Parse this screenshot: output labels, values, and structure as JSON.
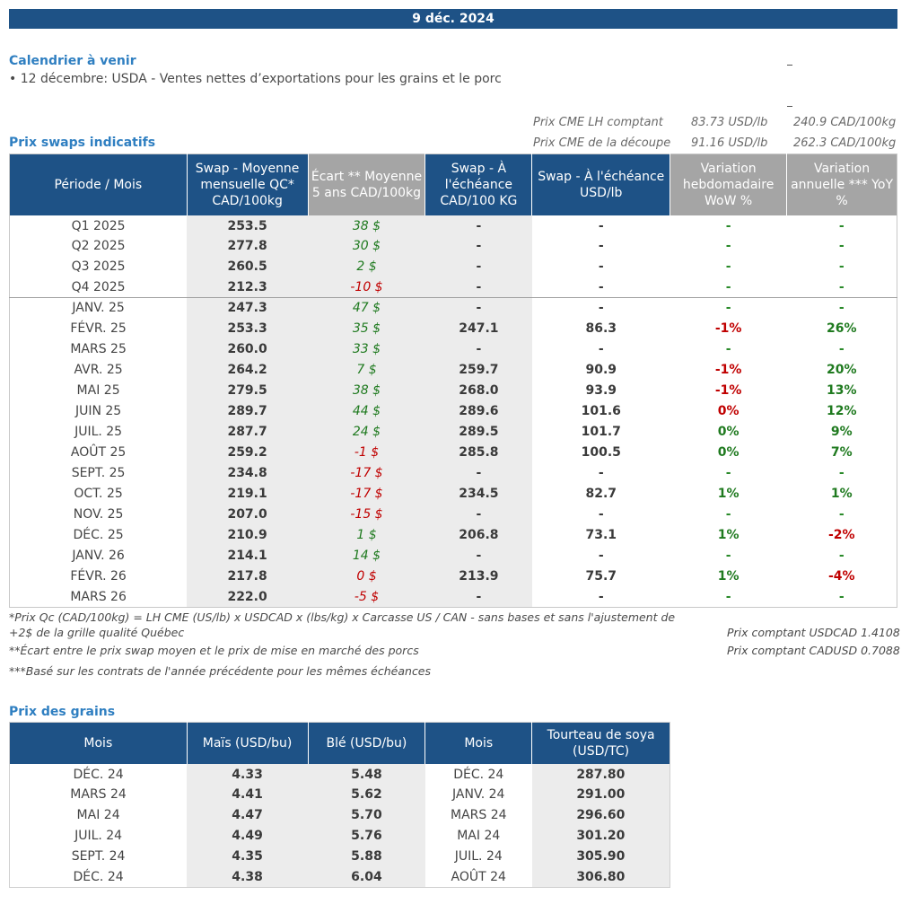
{
  "header": {
    "date": "9 déc. 2024"
  },
  "calendar": {
    "title": "Calendrier à venir",
    "items": [
      "• 12 décembre: USDA - Ventes nettes d’exportations pour les grains et le porc"
    ]
  },
  "cme": {
    "rows": [
      {
        "label": "Prix CME LH comptant",
        "usd": "83.73 USD/lb",
        "cad": "240.9 CAD/100kg"
      },
      {
        "label": "Prix CME de la découpe",
        "usd": "91.16 USD/lb",
        "cad": "262.3 CAD/100kg"
      }
    ]
  },
  "swaps": {
    "title": "Prix swaps indicatifs",
    "headers": [
      "Période / Mois",
      "Swap - Moyenne mensuelle QC* CAD/100kg",
      "Écart ** Moyenne 5 ans CAD/100kg",
      "Swap - À l'échéance CAD/100 KG",
      "Swap - À l'échéance USD/lb",
      "Variation hebdomadaire WoW %",
      "Variation annuelle *** YoY %"
    ],
    "rows": [
      {
        "p": "Q1 2025",
        "m": "253.5",
        "e": "38 $",
        "es": "pos",
        "c": "-",
        "u": "-",
        "w": "-",
        "ws": "neu",
        "y": "-",
        "ys": "neu"
      },
      {
        "p": "Q2 2025",
        "m": "277.8",
        "e": "30 $",
        "es": "pos",
        "c": "-",
        "u": "-",
        "w": "-",
        "ws": "neu",
        "y": "-",
        "ys": "neu"
      },
      {
        "p": "Q3 2025",
        "m": "260.5",
        "e": "2 $",
        "es": "pos",
        "c": "-",
        "u": "-",
        "w": "-",
        "ws": "neu",
        "y": "-",
        "ys": "neu"
      },
      {
        "p": "Q4 2025",
        "m": "212.3",
        "e": "-10 $",
        "es": "neg",
        "c": "-",
        "u": "-",
        "w": "-",
        "ws": "neu",
        "y": "-",
        "ys": "neu"
      },
      {
        "p": "JANV. 25",
        "m": "247.3",
        "e": "47 $",
        "es": "pos",
        "c": "-",
        "u": "-",
        "w": "-",
        "ws": "neu",
        "y": "-",
        "ys": "neu"
      },
      {
        "p": "FÉVR. 25",
        "m": "253.3",
        "e": "35 $",
        "es": "pos",
        "c": "247.1",
        "u": "86.3",
        "w": "-1%",
        "ws": "neg",
        "y": "26%",
        "ys": "pos"
      },
      {
        "p": "MARS 25",
        "m": "260.0",
        "e": "33 $",
        "es": "pos",
        "c": "-",
        "u": "-",
        "w": "-",
        "ws": "neu",
        "y": "-",
        "ys": "neu"
      },
      {
        "p": "AVR. 25",
        "m": "264.2",
        "e": "7 $",
        "es": "pos",
        "c": "259.7",
        "u": "90.9",
        "w": "-1%",
        "ws": "neg",
        "y": "20%",
        "ys": "pos"
      },
      {
        "p": "MAI 25",
        "m": "279.5",
        "e": "38 $",
        "es": "pos",
        "c": "268.0",
        "u": "93.9",
        "w": "-1%",
        "ws": "neg",
        "y": "13%",
        "ys": "pos"
      },
      {
        "p": "JUIN 25",
        "m": "289.7",
        "e": "44 $",
        "es": "pos",
        "c": "289.6",
        "u": "101.6",
        "w": "0%",
        "ws": "neg",
        "y": "12%",
        "ys": "pos"
      },
      {
        "p": "JUIL. 25",
        "m": "287.7",
        "e": "24 $",
        "es": "pos",
        "c": "289.5",
        "u": "101.7",
        "w": "0%",
        "ws": "pos",
        "y": "9%",
        "ys": "pos"
      },
      {
        "p": "AOÛT 25",
        "m": "259.2",
        "e": "-1 $",
        "es": "neg",
        "c": "285.8",
        "u": "100.5",
        "w": "0%",
        "ws": "pos",
        "y": "7%",
        "ys": "pos"
      },
      {
        "p": "SEPT. 25",
        "m": "234.8",
        "e": "-17 $",
        "es": "neg",
        "c": "-",
        "u": "-",
        "w": "-",
        "ws": "neu",
        "y": "-",
        "ys": "neu"
      },
      {
        "p": "OCT. 25",
        "m": "219.1",
        "e": "-17 $",
        "es": "neg",
        "c": "234.5",
        "u": "82.7",
        "w": "1%",
        "ws": "pos",
        "y": "1%",
        "ys": "pos"
      },
      {
        "p": "NOV. 25",
        "m": "207.0",
        "e": "-15 $",
        "es": "neg",
        "c": "-",
        "u": "-",
        "w": "-",
        "ws": "neu",
        "y": "-",
        "ys": "neu"
      },
      {
        "p": "DÉC. 25",
        "m": "210.9",
        "e": "1 $",
        "es": "pos",
        "c": "206.8",
        "u": "73.1",
        "w": "1%",
        "ws": "pos",
        "y": "-2%",
        "ys": "neg"
      },
      {
        "p": "JANV. 26",
        "m": "214.1",
        "e": "14 $",
        "es": "pos",
        "c": "-",
        "u": "-",
        "w": "-",
        "ws": "neu",
        "y": "-",
        "ys": "neu"
      },
      {
        "p": "FÉVR. 26",
        "m": "217.8",
        "e": "0 $",
        "es": "neg",
        "c": "213.9",
        "u": "75.7",
        "w": "1%",
        "ws": "pos",
        "y": "-4%",
        "ys": "neg"
      },
      {
        "p": "MARS 26",
        "m": "222.0",
        "e": "-5 $",
        "es": "neg",
        "c": "-",
        "u": "-",
        "w": "-",
        "ws": "neu",
        "y": "-",
        "ys": "neu"
      }
    ]
  },
  "notes": {
    "n1a": "*Prix Qc (CAD/100kg) = LH CME (US/lb) x USDCAD x (lbs/kg) x Carcasse US / CAN - sans bases et sans l'ajustement de",
    "n1b": "+2$ de la grille qualité Québec",
    "n2": "**Écart entre le prix swap moyen et le prix de mise en marché des porcs",
    "n3": "***Basé sur les contrats de l'année précédente pour les mêmes échéances",
    "usdcad": "Prix comptant USDCAD 1.4108",
    "cadusd": "Prix comptant CADUSD 0.7088"
  },
  "grains": {
    "title": "Prix des grains",
    "headers": [
      "Mois",
      "Maïs (USD/bu)",
      "Blé (USD/bu)",
      "Mois",
      "Tourteau de soya (USD/TC)"
    ],
    "rows": [
      {
        "m1": "DÉC. 24",
        "mais": "4.33",
        "ble": "5.48",
        "m2": "DÉC. 24",
        "soya": "287.80"
      },
      {
        "m1": "MARS 24",
        "mais": "4.41",
        "ble": "5.62",
        "m2": "JANV. 24",
        "soya": "291.00"
      },
      {
        "m1": "MAI 24",
        "mais": "4.47",
        "ble": "5.70",
        "m2": "MARS 24",
        "soya": "296.60"
      },
      {
        "m1": "JUIL. 24",
        "mais": "4.49",
        "ble": "5.76",
        "m2": "MAI 24",
        "soya": "301.20"
      },
      {
        "m1": "SEPT. 24",
        "mais": "4.35",
        "ble": "5.88",
        "m2": "JUIL. 24",
        "soya": "305.90"
      },
      {
        "m1": "DÉC. 24",
        "mais": "4.38",
        "ble": "6.04",
        "m2": "AOÛT 24",
        "soya": "306.80"
      }
    ]
  }
}
